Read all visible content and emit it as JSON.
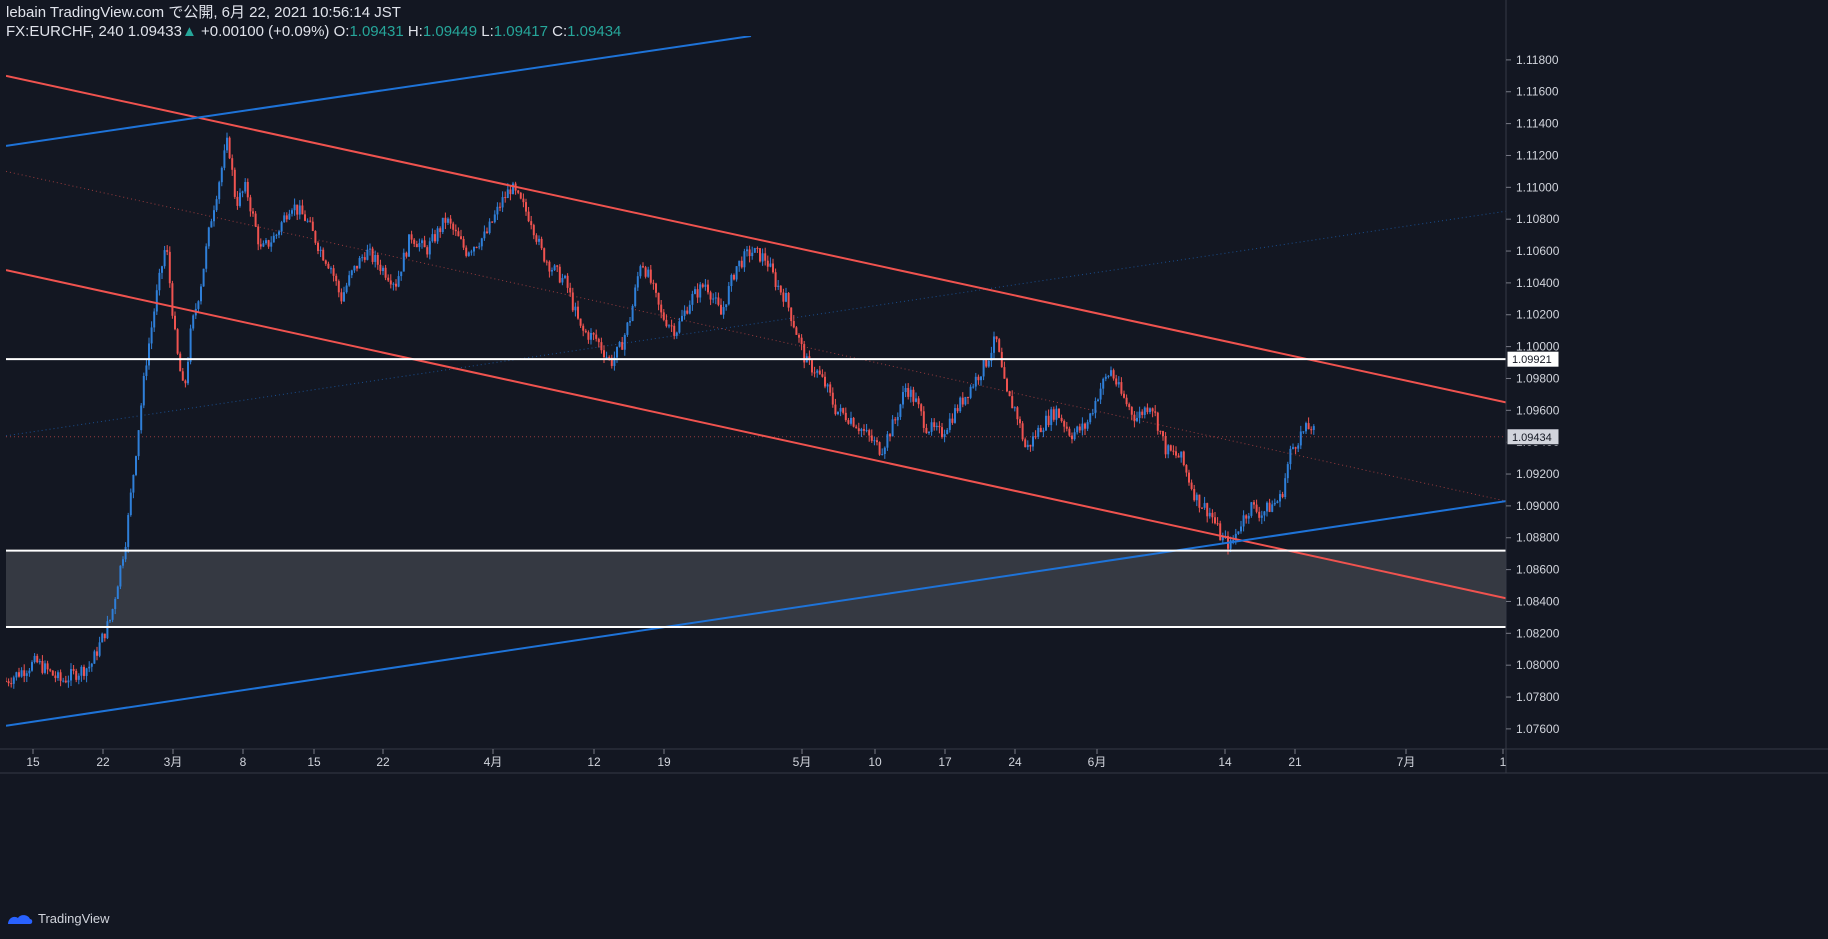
{
  "header": {
    "line1": "lebain TradingView.com で公開, 6月 22, 2021 10:56:14 JST",
    "symbol": "FX:EURCHF, 240",
    "last": "1.09433",
    "change": "+0.00100 (+0.09%)",
    "o_label": "O:",
    "o": "1.09431",
    "h_label": "H:",
    "h": "1.09449",
    "l_label": "L:",
    "l": "1.09417",
    "c_label": "C:",
    "c": "1.09434"
  },
  "footer": {
    "brand": "TradingView"
  },
  "colors": {
    "background": "#131722",
    "up": "#2f7fd8",
    "down": "#ef5350",
    "channel_red": "#f0534f",
    "channel_blue": "#1e73d8",
    "level": "#ffffff",
    "zone": "#3a3d46",
    "price_badge": "#d1d4dc"
  },
  "chart_data": {
    "type": "candlestick",
    "y_ticks": [
      "1.11800",
      "1.11600",
      "1.11400",
      "1.11200",
      "1.11000",
      "1.10800",
      "1.10600",
      "1.10400",
      "1.10200",
      "1.10000",
      "1.09800",
      "1.09600",
      "1.09400",
      "1.09200",
      "1.09000",
      "1.08800",
      "1.08600",
      "1.08400",
      "1.08200",
      "1.08000",
      "1.07800",
      "1.07600"
    ],
    "x_ticks": [
      "15",
      "22",
      "3月",
      "8",
      "15",
      "22",
      "4月",
      "12",
      "19",
      "5月",
      "10",
      "17",
      "24",
      "6月",
      "14",
      "21",
      "7月",
      "1"
    ],
    "ylim": [
      1.0748,
      1.1195
    ],
    "horizontal_levels": [
      1.09921,
      1.08719,
      1.0824
    ],
    "zone": [
      1.0824,
      1.08719
    ],
    "price_labels": [
      {
        "text": "1.09921",
        "value": 1.09921
      },
      {
        "text": "1.09434",
        "value": 1.09434
      }
    ],
    "path_x": [
      0,
      30,
      55,
      85,
      105,
      120,
      130,
      140,
      150,
      160,
      170,
      178,
      185,
      195,
      205,
      215,
      222,
      230,
      240,
      255,
      270,
      285,
      300,
      315,
      325,
      335,
      345,
      360,
      375,
      390,
      405,
      420,
      440,
      460,
      480,
      495,
      505,
      515,
      525,
      535,
      545,
      560,
      575,
      590,
      605,
      615,
      625,
      635,
      645,
      655,
      670,
      685,
      700,
      715,
      730,
      745,
      760,
      770,
      780,
      790,
      800,
      810,
      820,
      830,
      845,
      860,
      875,
      890,
      900,
      910,
      920,
      935,
      950,
      965,
      980,
      990,
      1000,
      1010,
      1020,
      1035,
      1050,
      1065,
      1080,
      1095,
      1105,
      1115,
      1130,
      1145,
      1160,
      1175,
      1190,
      1205,
      1215,
      1225,
      1235,
      1245,
      1255,
      1265,
      1275,
      1285,
      1295,
      1305,
      1310
    ],
    "path_y": [
      1.079,
      1.0802,
      1.079,
      1.08,
      1.083,
      1.088,
      1.0935,
      1.099,
      1.103,
      1.1065,
      1.1,
      1.097,
      1.101,
      1.104,
      1.108,
      1.111,
      1.113,
      1.109,
      1.11,
      1.106,
      1.107,
      1.109,
      1.108,
      1.106,
      1.105,
      1.103,
      1.1045,
      1.106,
      1.105,
      1.104,
      1.107,
      1.106,
      1.108,
      1.106,
      1.107,
      1.109,
      1.11,
      1.109,
      1.108,
      1.106,
      1.105,
      1.104,
      1.101,
      1.1005,
      1.099,
      1.1,
      1.102,
      1.1055,
      1.104,
      1.102,
      1.101,
      1.103,
      1.104,
      1.102,
      1.105,
      1.106,
      1.1055,
      1.104,
      1.103,
      1.101,
      1.099,
      1.0985,
      1.0975,
      1.096,
      1.0955,
      1.0945,
      1.0935,
      1.0955,
      1.0975,
      1.0965,
      1.095,
      1.0945,
      1.096,
      1.0975,
      1.099,
      1.1005,
      1.097,
      1.096,
      1.0935,
      1.095,
      1.096,
      1.0945,
      1.095,
      1.0975,
      1.0985,
      1.097,
      1.0955,
      1.0965,
      1.0935,
      1.093,
      1.0905,
      1.0895,
      1.088,
      1.0875,
      1.089,
      1.09,
      1.0895,
      1.09,
      1.0905,
      1.0935,
      1.0945,
      1.095,
      1.0943
    ],
    "x_range": [
      0,
      1500
    ],
    "trend_lines": [
      {
        "color": "red",
        "points": [
          [
            0,
            1.117
          ],
          [
            1500,
            1.0965
          ]
        ]
      },
      {
        "color": "red",
        "points": [
          [
            0,
            1.1048
          ],
          [
            1500,
            1.0842
          ]
        ]
      },
      {
        "color": "blue",
        "points": [
          [
            0,
            1.1126
          ],
          [
            745,
            1.1195
          ]
        ]
      },
      {
        "color": "blue",
        "points": [
          [
            0,
            1.0762
          ],
          [
            1500,
            1.0903
          ]
        ]
      }
    ],
    "dotted_lines": [
      {
        "color": "red",
        "points": [
          [
            0,
            1.111
          ],
          [
            1500,
            1.0903
          ]
        ]
      },
      {
        "color": "blue",
        "points": [
          [
            0,
            1.0944
          ],
          [
            1500,
            1.1085
          ]
        ]
      },
      {
        "color": "red",
        "points": [
          [
            0,
            1.09434
          ],
          [
            1500,
            1.09434
          ]
        ]
      }
    ]
  }
}
